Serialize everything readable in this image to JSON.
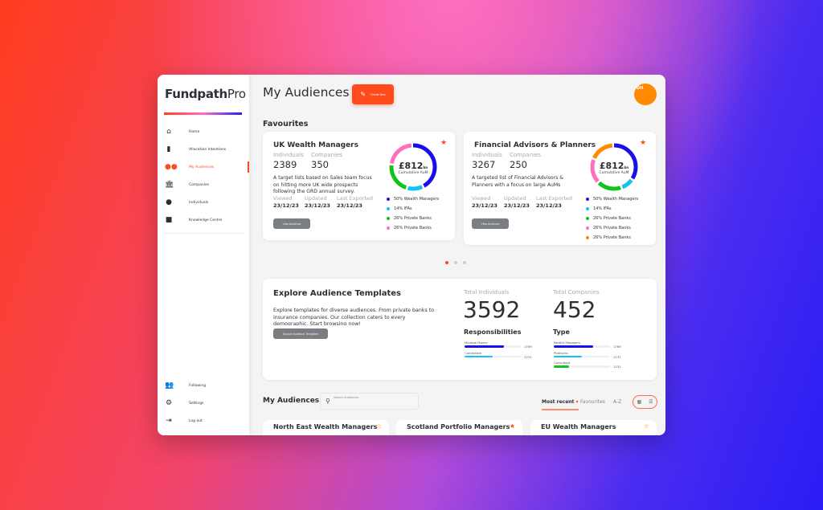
{
  "brand": {
    "name_bold": "Fundpath",
    "name_light": "Pro"
  },
  "sidebar": {
    "items": [
      {
        "label": "Home",
        "icon": "home-icon"
      },
      {
        "label": "Allocation Intentions",
        "icon": "bar-chart-icon"
      },
      {
        "label": "My Audiences",
        "icon": "audiences-icon",
        "active": true
      },
      {
        "label": "Companies",
        "icon": "bank-icon"
      },
      {
        "label": "Individuals",
        "icon": "person-icon"
      },
      {
        "label": "Knowledge Centre",
        "icon": "chat-icon"
      }
    ],
    "bottom": [
      {
        "label": "Following",
        "icon": "people-icon"
      },
      {
        "label": "Settings",
        "icon": "gear-icon"
      },
      {
        "label": "Log out",
        "icon": "logout-icon"
      }
    ]
  },
  "header": {
    "title": "My Audiences",
    "create_label": "Create New",
    "avatar_initials": "DH"
  },
  "favourites": {
    "title": "Favourites",
    "cards": [
      {
        "title": "UK Wealth Managers",
        "individuals_label": "Individuals",
        "individuals": "2389",
        "companies_label": "Companies",
        "companies": "350",
        "description": "A target lists based on Sales team focus on hitting more UK wide prospects following the GRD annual survey.",
        "viewed_label": "Viewed",
        "viewed": "23/12/23",
        "updated_label": "Updated",
        "updated": "23/12/23",
        "exported_label": "Last Exported",
        "exported": "23/12/23",
        "button": "View Audience",
        "aum": "£812",
        "aum_unit": "bn",
        "aum_label": "Cumulative AuM",
        "legend": [
          {
            "label": "50% Wealth Managers",
            "pct": 50,
            "color": "#1a0fe8"
          },
          {
            "label": "14% IFAs",
            "pct": 14,
            "color": "#12c3f4"
          },
          {
            "label": "26% Private Banks",
            "pct": 26,
            "color": "#12c31a"
          },
          {
            "label": "26% Private Banks",
            "pct": 26,
            "color": "#ff6fc0"
          }
        ],
        "favourite": true
      },
      {
        "title": "Financial Advisors & Planners",
        "individuals_label": "Individuals",
        "individuals": "3267",
        "companies_label": "Companies",
        "companies": "250",
        "description": "A targeted list of Financial Advisors & Planners with a focus on large AuMs",
        "viewed_label": "Viewed",
        "viewed": "23/12/23",
        "updated_label": "Updated",
        "updated": "23/12/23",
        "exported_label": "Last Exported",
        "exported": "23/12/23",
        "button": "View Audience",
        "aum": "£812",
        "aum_unit": "bn",
        "aum_label": "Cumulative AuM",
        "legend": [
          {
            "label": "50% Wealth Managers",
            "pct": 50,
            "color": "#1a0fe8"
          },
          {
            "label": "14% IFAs",
            "pct": 14,
            "color": "#12c3f4"
          },
          {
            "label": "26% Private Banks",
            "pct": 26,
            "color": "#12c31a"
          },
          {
            "label": "26% Private Banks",
            "pct": 26,
            "color": "#ff6fc0"
          },
          {
            "label": "26% Private Banks",
            "pct": 26,
            "color": "#ff8a00"
          }
        ],
        "favourite": true
      }
    ],
    "carousel": {
      "pages": 3,
      "active": 0
    }
  },
  "templates": {
    "title": "Explore Audience Templates",
    "description": "Explore templates for diverse audiences. From private banks to insurance companies. Our collection caters to every demographic. Start browsing now!",
    "button": "Explore Audience Templates",
    "total_individuals_label": "Total Individuals",
    "total_individuals": "3592",
    "total_companies_label": "Total Companies",
    "total_companies": "452",
    "responsibilities_title": "Responsibilities",
    "responsibilities": [
      {
        "label": "Manage Money",
        "value": "1789",
        "fill": 0.7,
        "color": "#1a0fe8"
      },
      {
        "label": "Committee",
        "value": "1231",
        "fill": 0.5,
        "color": "#12c3f4"
      }
    ],
    "type_title": "Type",
    "types": [
      {
        "label": "Wealth Managers",
        "value": "1789",
        "fill": 0.7,
        "color": "#1a0fe8"
      },
      {
        "label": "Platforms",
        "value": "1231",
        "fill": 0.5,
        "color": "#12c3f4"
      },
      {
        "label": "Consultant",
        "value": "1231",
        "fill": 0.27,
        "color": "#12c31a"
      }
    ]
  },
  "my_audiences": {
    "title": "My Audiences",
    "search_placeholder": "Search Audiences",
    "sort_tabs": [
      {
        "label": "Most recent",
        "active": true
      },
      {
        "label": "Favourites"
      },
      {
        "label": "A-Z"
      }
    ],
    "cards": [
      {
        "title": "North East Wealth Managers",
        "favourite": false
      },
      {
        "title": "Scotland Portfolio Managers",
        "favourite": true
      },
      {
        "title": "EU Wealth Managers",
        "favourite": false
      }
    ]
  }
}
